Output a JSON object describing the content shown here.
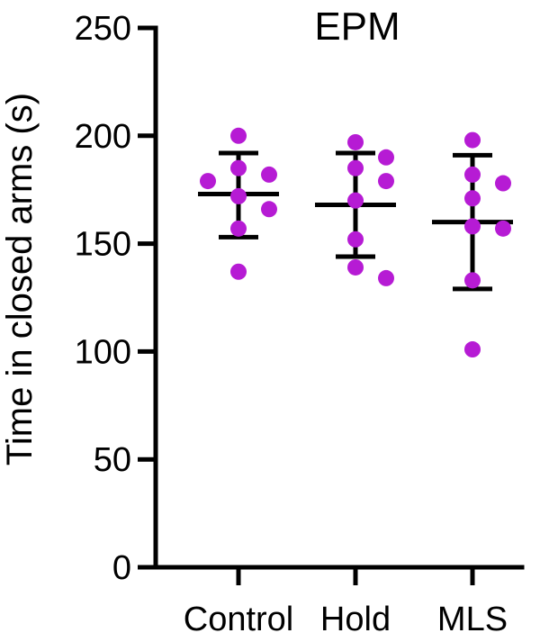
{
  "chart_data": {
    "type": "scatter",
    "title": "EPM",
    "xlabel": "",
    "ylabel": "Time in closed arms (s)",
    "ylim": [
      0,
      250
    ],
    "yticks": [
      0,
      50,
      100,
      150,
      200,
      250
    ],
    "categories": [
      "Control",
      "Hold",
      "MLS"
    ],
    "point_color": "#b61bd4",
    "groups": [
      {
        "category": "Control",
        "mean": 173,
        "sd_low": 153,
        "sd_high": 192,
        "points": [
          200,
          185,
          182,
          179,
          172,
          166,
          157,
          137
        ]
      },
      {
        "category": "Hold",
        "mean": 168,
        "sd_low": 144,
        "sd_high": 192,
        "points": [
          197,
          190,
          185,
          179,
          170,
          152,
          139,
          134
        ]
      },
      {
        "category": "MLS",
        "mean": 160,
        "sd_low": 129,
        "sd_high": 191,
        "points": [
          198,
          182,
          178,
          171,
          157,
          158,
          133,
          101
        ]
      }
    ],
    "grid": false,
    "legend": "none"
  }
}
